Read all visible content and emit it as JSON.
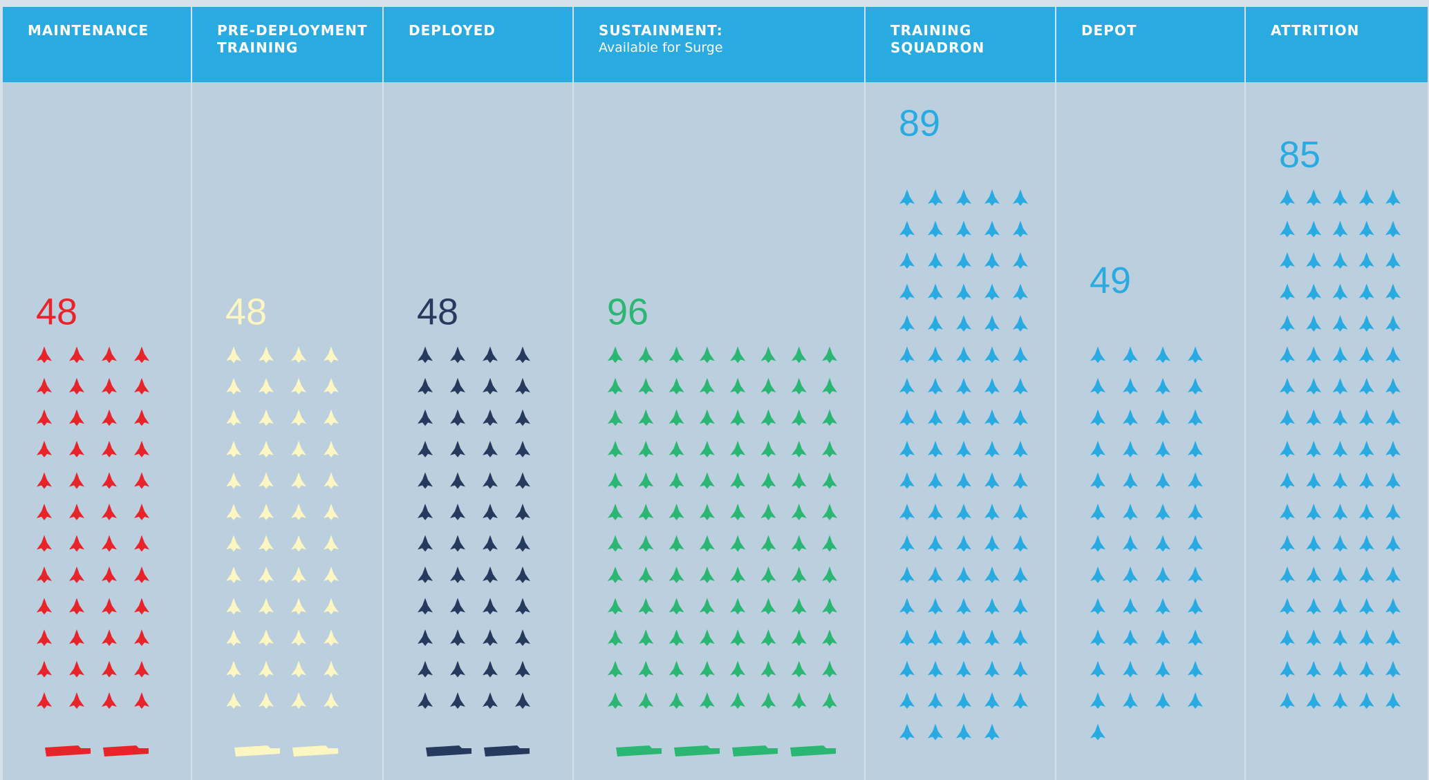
{
  "chart_data": {
    "type": "pictograph",
    "categories": [
      "MAINTENANCE",
      "PRE-DEPLOYMENT TRAINING",
      "DEPLOYED",
      "SUSTAINMENT:",
      "TRAINING SQUADRON",
      "DEPOT",
      "ATTRITION"
    ],
    "subtitles": [
      null,
      null,
      null,
      "Available for Surge",
      null,
      null,
      null
    ],
    "values": [
      48,
      48,
      48,
      96,
      89,
      49,
      85
    ],
    "ship_counts": [
      2,
      2,
      2,
      4,
      0,
      0,
      0
    ],
    "colors": [
      "#e8242b",
      "#fcf6c2",
      "#263a5e",
      "#2bb673",
      "#29abe2",
      "#29abe2",
      "#29abe2"
    ],
    "header_color": "#29abe2",
    "background_color": "#bccfdf"
  }
}
